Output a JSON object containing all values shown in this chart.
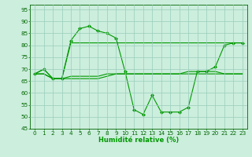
{
  "xlabel": "Humidité relative (%)",
  "background_color": "#cceedd",
  "grid_color": "#99ccbb",
  "line_color": "#009900",
  "marker_color": "#009900",
  "ylim": [
    45,
    97
  ],
  "xlim": [
    -0.5,
    23.5
  ],
  "yticks": [
    45,
    50,
    55,
    60,
    65,
    70,
    75,
    80,
    85,
    90,
    95
  ],
  "xticks": [
    0,
    1,
    2,
    3,
    4,
    5,
    6,
    7,
    8,
    9,
    10,
    11,
    12,
    13,
    14,
    15,
    16,
    17,
    18,
    19,
    20,
    21,
    22,
    23
  ],
  "series1": [
    68,
    70,
    66,
    66,
    82,
    87,
    88,
    86,
    85,
    83,
    69,
    53,
    51,
    59,
    52,
    52,
    52,
    54,
    69,
    69,
    71,
    80,
    81,
    81
  ],
  "series2": [
    68,
    68,
    66,
    66,
    81,
    81,
    81,
    81,
    81,
    81,
    81,
    81,
    81,
    81,
    81,
    81,
    81,
    81,
    81,
    81,
    81,
    81,
    81,
    81
  ],
  "series3": [
    68,
    70,
    66,
    66,
    67,
    67,
    67,
    67,
    68,
    68,
    68,
    68,
    68,
    68,
    68,
    68,
    68,
    69,
    69,
    69,
    69,
    68,
    68,
    68
  ],
  "series4": [
    68,
    68,
    66,
    66,
    66,
    66,
    66,
    66,
    67,
    68,
    68,
    68,
    68,
    68,
    68,
    68,
    68,
    68,
    68,
    68,
    68,
    68,
    68,
    68
  ],
  "xlabel_fontsize": 6.0,
  "tick_fontsize": 5.2
}
